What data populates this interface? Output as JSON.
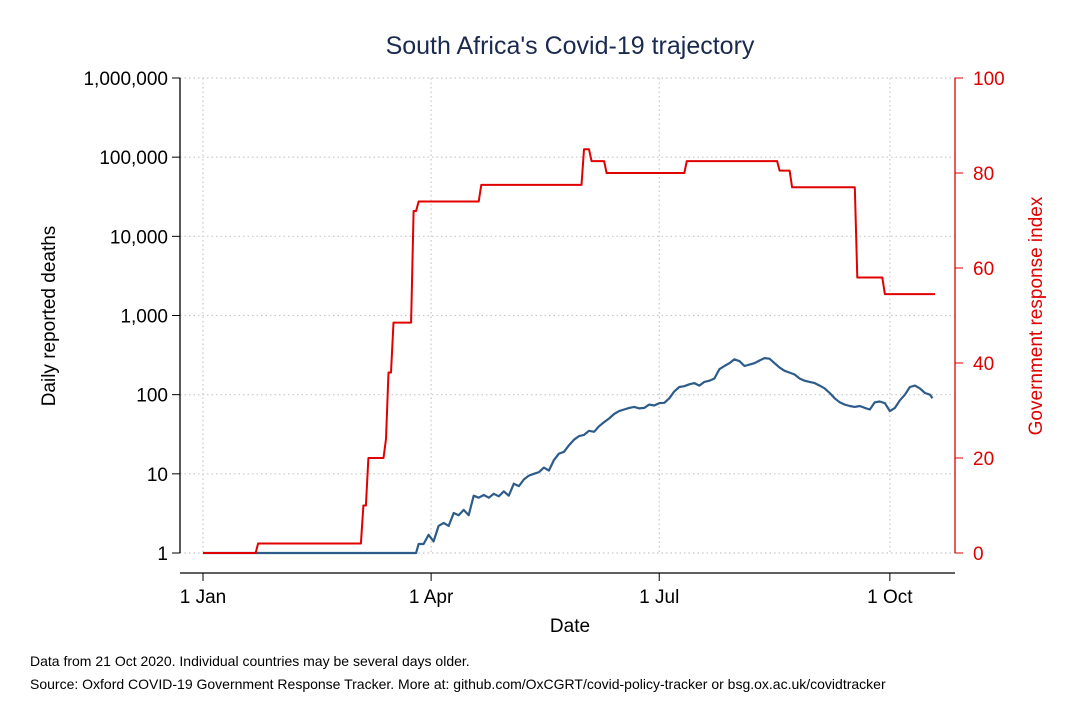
{
  "chart_data": {
    "type": "line",
    "title": "South Africa's Covid-19 trajectory",
    "xlabel": "Date",
    "ylabel_left": "Daily reported deaths",
    "ylabel_right": "Government response index",
    "notes": [
      "Data from 21 Oct 2020. Individual countries may be several days older.",
      "Source: Oxford COVID-19 Government Response Tracker. More at: github.com/OxCGRT/covid-policy-tracker or bsg.ox.ac.uk/covidtracker"
    ],
    "x_axis": {
      "type": "date",
      "range": [
        "2020-01-01",
        "2020-10-21"
      ],
      "ticks": [
        {
          "date": "2020-01-01",
          "label": "1 Jan"
        },
        {
          "date": "2020-04-01",
          "label": "1 Apr"
        },
        {
          "date": "2020-07-01",
          "label": "1 Jul"
        },
        {
          "date": "2020-10-01",
          "label": "1 Oct"
        }
      ]
    },
    "y_left": {
      "scale": "log",
      "range": [
        1,
        1000000
      ],
      "ticks": [
        {
          "value": 1,
          "label": "1"
        },
        {
          "value": 10,
          "label": "10"
        },
        {
          "value": 100,
          "label": "100"
        },
        {
          "value": 1000,
          "label": "1,000"
        },
        {
          "value": 10000,
          "label": "10,000"
        },
        {
          "value": 100000,
          "label": "100,000"
        },
        {
          "value": 1000000,
          "label": "1,000,000"
        }
      ]
    },
    "y_right": {
      "scale": "linear",
      "range": [
        0,
        100
      ],
      "ticks": [
        {
          "value": 0,
          "label": "0"
        },
        {
          "value": 20,
          "label": "20"
        },
        {
          "value": 40,
          "label": "40"
        },
        {
          "value": 60,
          "label": "60"
        },
        {
          "value": 80,
          "label": "80"
        },
        {
          "value": 100,
          "label": "100"
        }
      ]
    },
    "grid": true,
    "series": [
      {
        "axis": "left",
        "color": "#2e5c8a",
        "points": [
          [
            "2020-01-01",
            1
          ],
          [
            "2020-03-26",
            1
          ],
          [
            "2020-03-27",
            1.3
          ],
          [
            "2020-03-29",
            1.3
          ],
          [
            "2020-03-31",
            1.7
          ],
          [
            "2020-04-02",
            1.4
          ],
          [
            "2020-04-04",
            2.2
          ],
          [
            "2020-04-06",
            2.4
          ],
          [
            "2020-04-08",
            2.2
          ],
          [
            "2020-04-10",
            3.2
          ],
          [
            "2020-04-12",
            3.0
          ],
          [
            "2020-04-14",
            3.5
          ],
          [
            "2020-04-16",
            3.0
          ],
          [
            "2020-04-18",
            5.3
          ],
          [
            "2020-04-20",
            5.0
          ],
          [
            "2020-04-22",
            5.4
          ],
          [
            "2020-04-24",
            5.0
          ],
          [
            "2020-04-26",
            5.6
          ],
          [
            "2020-04-28",
            5.2
          ],
          [
            "2020-04-30",
            6.0
          ],
          [
            "2020-05-02",
            5.3
          ],
          [
            "2020-05-04",
            7.5
          ],
          [
            "2020-05-06",
            7.0
          ],
          [
            "2020-05-08",
            8.5
          ],
          [
            "2020-05-10",
            9.5
          ],
          [
            "2020-05-12",
            10
          ],
          [
            "2020-05-14",
            10.5
          ],
          [
            "2020-05-16",
            12
          ],
          [
            "2020-05-18",
            11
          ],
          [
            "2020-05-20",
            15
          ],
          [
            "2020-05-22",
            18
          ],
          [
            "2020-05-24",
            19
          ],
          [
            "2020-05-26",
            23
          ],
          [
            "2020-05-28",
            27
          ],
          [
            "2020-05-30",
            30
          ],
          [
            "2020-06-01",
            31
          ],
          [
            "2020-06-03",
            35
          ],
          [
            "2020-06-05",
            34
          ],
          [
            "2020-06-07",
            40
          ],
          [
            "2020-06-09",
            45
          ],
          [
            "2020-06-11",
            50
          ],
          [
            "2020-06-13",
            57
          ],
          [
            "2020-06-15",
            62
          ],
          [
            "2020-06-17",
            65
          ],
          [
            "2020-06-19",
            68
          ],
          [
            "2020-06-21",
            70
          ],
          [
            "2020-06-23",
            67
          ],
          [
            "2020-06-25",
            68
          ],
          [
            "2020-06-27",
            75
          ],
          [
            "2020-06-29",
            73
          ],
          [
            "2020-07-01",
            78
          ],
          [
            "2020-07-03",
            79
          ],
          [
            "2020-07-05",
            90
          ],
          [
            "2020-07-07",
            110
          ],
          [
            "2020-07-09",
            125
          ],
          [
            "2020-07-11",
            128
          ],
          [
            "2020-07-13",
            135
          ],
          [
            "2020-07-15",
            140
          ],
          [
            "2020-07-17",
            130
          ],
          [
            "2020-07-19",
            145
          ],
          [
            "2020-07-21",
            150
          ],
          [
            "2020-07-23",
            160
          ],
          [
            "2020-07-25",
            210
          ],
          [
            "2020-07-27",
            230
          ],
          [
            "2020-07-29",
            250
          ],
          [
            "2020-07-31",
            280
          ],
          [
            "2020-08-02",
            265
          ],
          [
            "2020-08-04",
            230
          ],
          [
            "2020-08-06",
            240
          ],
          [
            "2020-08-08",
            250
          ],
          [
            "2020-08-10",
            270
          ],
          [
            "2020-08-12",
            290
          ],
          [
            "2020-08-14",
            285
          ],
          [
            "2020-08-16",
            250
          ],
          [
            "2020-08-18",
            220
          ],
          [
            "2020-08-20",
            200
          ],
          [
            "2020-08-22",
            190
          ],
          [
            "2020-08-24",
            180
          ],
          [
            "2020-08-26",
            160
          ],
          [
            "2020-08-28",
            150
          ],
          [
            "2020-08-30",
            145
          ],
          [
            "2020-09-01",
            140
          ],
          [
            "2020-09-03",
            130
          ],
          [
            "2020-09-05",
            120
          ],
          [
            "2020-09-07",
            105
          ],
          [
            "2020-09-09",
            90
          ],
          [
            "2020-09-11",
            80
          ],
          [
            "2020-09-13",
            75
          ],
          [
            "2020-09-15",
            72
          ],
          [
            "2020-09-17",
            70
          ],
          [
            "2020-09-19",
            72
          ],
          [
            "2020-09-21",
            68
          ],
          [
            "2020-09-23",
            65
          ],
          [
            "2020-09-25",
            80
          ],
          [
            "2020-09-27",
            82
          ],
          [
            "2020-09-29",
            78
          ],
          [
            "2020-10-01",
            62
          ],
          [
            "2020-10-03",
            68
          ],
          [
            "2020-10-05",
            85
          ],
          [
            "2020-10-07",
            100
          ],
          [
            "2020-10-09",
            125
          ],
          [
            "2020-10-11",
            130
          ],
          [
            "2020-10-13",
            120
          ],
          [
            "2020-10-15",
            105
          ],
          [
            "2020-10-17",
            100
          ],
          [
            "2020-10-18",
            90
          ]
        ]
      },
      {
        "axis": "right",
        "color": "#e00000",
        "points": [
          [
            "2020-01-01",
            0
          ],
          [
            "2020-01-22",
            0
          ],
          [
            "2020-01-23",
            2
          ],
          [
            "2020-03-04",
            2
          ],
          [
            "2020-03-05",
            10
          ],
          [
            "2020-03-06",
            10
          ],
          [
            "2020-03-07",
            20
          ],
          [
            "2020-03-13",
            20
          ],
          [
            "2020-03-14",
            24
          ],
          [
            "2020-03-15",
            38
          ],
          [
            "2020-03-16",
            38
          ],
          [
            "2020-03-17",
            48.5
          ],
          [
            "2020-03-24",
            48.5
          ],
          [
            "2020-03-25",
            72
          ],
          [
            "2020-03-26",
            72
          ],
          [
            "2020-03-27",
            74
          ],
          [
            "2020-04-20",
            74
          ],
          [
            "2020-04-21",
            77.5
          ],
          [
            "2020-05-31",
            77.5
          ],
          [
            "2020-06-01",
            85
          ],
          [
            "2020-06-03",
            85
          ],
          [
            "2020-06-04",
            82.5
          ],
          [
            "2020-06-09",
            82.5
          ],
          [
            "2020-06-10",
            80
          ],
          [
            "2020-07-11",
            80
          ],
          [
            "2020-07-12",
            82.5
          ],
          [
            "2020-08-17",
            82.5
          ],
          [
            "2020-08-18",
            80.5
          ],
          [
            "2020-08-22",
            80.5
          ],
          [
            "2020-08-23",
            77
          ],
          [
            "2020-09-17",
            77
          ],
          [
            "2020-09-18",
            58
          ],
          [
            "2020-09-28",
            58
          ],
          [
            "2020-09-29",
            54.5
          ],
          [
            "2020-10-19",
            54.5
          ]
        ]
      }
    ]
  }
}
